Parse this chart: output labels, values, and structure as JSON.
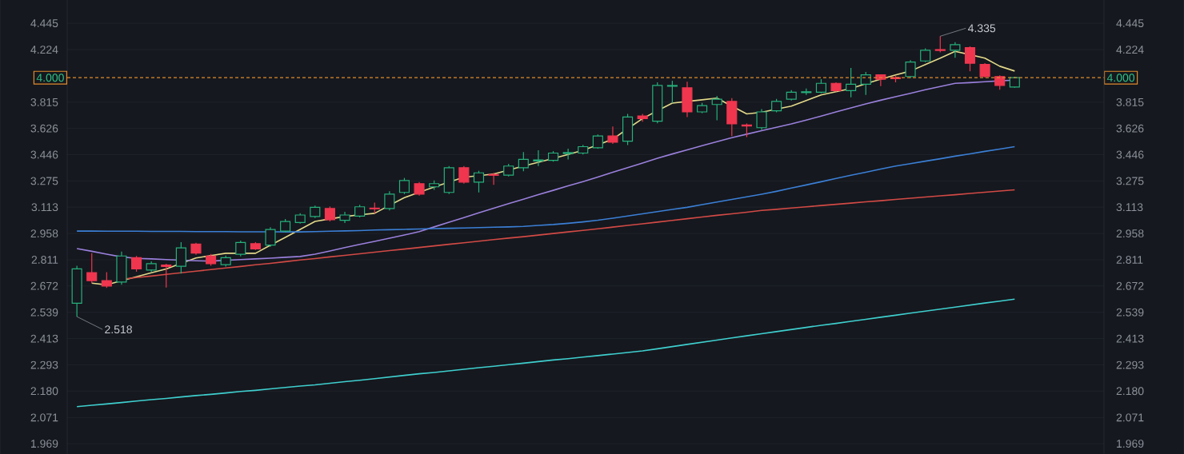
{
  "chart_data": {
    "type": "candlestick",
    "log": "y",
    "grid": "y",
    "tick_labels": "y",
    "categories": [
      null,
      null,
      null,
      null,
      null,
      null,
      null,
      null,
      null,
      null,
      null,
      null,
      null,
      null,
      null,
      null,
      null,
      null,
      null,
      null,
      null,
      null,
      null,
      null,
      null,
      null,
      null,
      null,
      null,
      null,
      null,
      null,
      null,
      null,
      null,
      null,
      null,
      null,
      null,
      null,
      null,
      null,
      null,
      null,
      null,
      null,
      null,
      null,
      null,
      null,
      null,
      null,
      null,
      null,
      null,
      null,
      null,
      null,
      null,
      null,
      null,
      null,
      null,
      null
    ],
    "ohlc": [
      [
        2.584,
        2.779,
        2.518,
        2.762
      ],
      [
        2.742,
        2.847,
        2.686,
        2.7
      ],
      [
        2.7,
        2.745,
        2.662,
        2.672
      ],
      [
        2.692,
        2.856,
        2.678,
        2.832
      ],
      [
        2.823,
        2.832,
        2.747,
        2.762
      ],
      [
        2.756,
        2.803,
        2.745,
        2.79
      ],
      [
        2.783,
        2.79,
        2.664,
        2.775
      ],
      [
        2.776,
        2.909,
        2.737,
        2.877
      ],
      [
        2.898,
        2.905,
        2.839,
        2.848
      ],
      [
        2.832,
        2.843,
        2.779,
        2.79
      ],
      [
        2.785,
        2.834,
        2.775,
        2.823
      ],
      [
        2.841,
        2.918,
        2.83,
        2.907
      ],
      [
        2.9,
        2.909,
        2.865,
        2.871
      ],
      [
        2.892,
        2.995,
        2.883,
        2.981
      ],
      [
        2.972,
        3.042,
        2.963,
        3.028
      ],
      [
        3.022,
        3.076,
        3.015,
        3.066
      ],
      [
        3.057,
        3.122,
        3.048,
        3.112
      ],
      [
        3.105,
        3.117,
        3.028,
        3.038
      ],
      [
        3.035,
        3.085,
        3.019,
        3.066
      ],
      [
        3.059,
        3.127,
        3.052,
        3.115
      ],
      [
        3.107,
        3.141,
        3.075,
        3.103
      ],
      [
        3.105,
        3.21,
        3.093,
        3.193
      ],
      [
        3.203,
        3.294,
        3.193,
        3.278
      ],
      [
        3.258,
        3.268,
        3.183,
        3.193
      ],
      [
        3.238,
        3.278,
        3.219,
        3.258
      ],
      [
        3.203,
        3.371,
        3.193,
        3.36
      ],
      [
        3.36,
        3.371,
        3.258,
        3.268
      ],
      [
        3.268,
        3.34,
        3.203,
        3.327
      ],
      [
        3.316,
        3.327,
        3.251,
        3.311
      ],
      [
        3.312,
        3.386,
        3.304,
        3.371
      ],
      [
        3.36,
        3.464,
        3.337,
        3.415
      ],
      [
        3.404,
        3.475,
        3.371,
        3.411
      ],
      [
        3.408,
        3.47,
        3.4,
        3.457
      ],
      [
        3.454,
        3.486,
        3.415,
        3.46
      ],
      [
        3.457,
        3.513,
        3.448,
        3.5
      ],
      [
        3.493,
        3.584,
        3.486,
        3.573
      ],
      [
        3.573,
        3.639,
        3.519,
        3.53
      ],
      [
        3.537,
        3.73,
        3.511,
        3.707
      ],
      [
        3.715,
        3.73,
        3.673,
        3.696
      ],
      [
        3.677,
        3.965,
        3.662,
        3.941
      ],
      [
        3.935,
        3.977,
        3.809,
        3.941
      ],
      [
        3.923,
        3.969,
        3.707,
        3.744
      ],
      [
        3.744,
        3.81,
        3.735,
        3.79
      ],
      [
        3.798,
        3.861,
        3.684,
        3.837
      ],
      [
        3.821,
        3.845,
        3.573,
        3.658
      ],
      [
        3.65,
        3.661,
        3.565,
        3.643
      ],
      [
        3.631,
        3.764,
        3.616,
        3.744
      ],
      [
        3.752,
        3.839,
        3.741,
        3.821
      ],
      [
        3.837,
        3.906,
        3.827,
        3.89
      ],
      [
        3.887,
        3.918,
        3.869,
        3.893
      ],
      [
        3.89,
        3.989,
        3.881,
        3.957
      ],
      [
        3.957,
        3.965,
        3.894,
        3.902
      ],
      [
        3.902,
        4.076,
        3.851,
        3.95
      ],
      [
        3.95,
        4.045,
        3.869,
        4.022
      ],
      [
        4.022,
        4.026,
        3.935,
        3.989
      ],
      [
        4.001,
        4.013,
        3.965,
        3.994
      ],
      [
        4.009,
        4.139,
        3.997,
        4.123
      ],
      [
        4.132,
        4.234,
        4.123,
        4.219
      ],
      [
        4.224,
        4.335,
        4.202,
        4.217
      ],
      [
        4.219,
        4.285,
        4.158,
        4.264
      ],
      [
        4.24,
        4.251,
        4.05,
        4.114
      ],
      [
        4.105,
        4.114,
        4.001,
        4.009
      ],
      [
        4.009,
        4.019,
        3.909,
        3.941
      ],
      [
        3.929,
        4.007,
        3.923,
        4.0
      ]
    ],
    "series": [
      {
        "type": "line",
        "color": "#e3d98a",
        "values": [
          null,
          2.687,
          2.678,
          2.699,
          2.72,
          2.741,
          2.762,
          2.792,
          2.821,
          2.834,
          2.847,
          2.847,
          2.847,
          2.892,
          2.936,
          2.982,
          3.028,
          3.043,
          3.057,
          3.067,
          3.076,
          3.124,
          3.171,
          3.204,
          3.237,
          3.268,
          3.299,
          3.309,
          3.319,
          3.345,
          3.371,
          3.396,
          3.421,
          3.448,
          3.475,
          3.513,
          3.551,
          3.624,
          3.696,
          3.753,
          3.809,
          3.821,
          3.833,
          3.845,
          3.786,
          3.73,
          3.741,
          3.764,
          3.786,
          3.828,
          3.869,
          3.894,
          3.918,
          3.954,
          3.989,
          4.021,
          4.052,
          4.104,
          4.155,
          4.21,
          4.183,
          4.155,
          4.09,
          4.052
        ]
      },
      {
        "type": "line",
        "color": "#9a80dd",
        "values": [
          2.873,
          2.858,
          2.842,
          2.827,
          2.819,
          2.816,
          2.812,
          2.809,
          2.806,
          2.804,
          2.808,
          2.812,
          2.816,
          2.82,
          2.825,
          2.829,
          2.842,
          2.86,
          2.878,
          2.896,
          2.913,
          2.931,
          2.949,
          2.969,
          2.996,
          3.024,
          3.051,
          3.079,
          3.106,
          3.134,
          3.161,
          3.189,
          3.216,
          3.244,
          3.271,
          3.3,
          3.331,
          3.361,
          3.391,
          3.422,
          3.451,
          3.479,
          3.507,
          3.534,
          3.562,
          3.586,
          3.61,
          3.634,
          3.658,
          3.685,
          3.714,
          3.744,
          3.773,
          3.803,
          3.83,
          3.856,
          3.882,
          3.908,
          3.933,
          3.957,
          3.963,
          3.97,
          3.976,
          3.982
        ]
      },
      {
        "type": "line",
        "color": "#3b7fd6",
        "values": [
          2.972,
          2.972,
          2.971,
          2.971,
          2.971,
          2.97,
          2.97,
          2.97,
          2.969,
          2.969,
          2.969,
          2.968,
          2.968,
          2.968,
          2.967,
          2.967,
          2.969,
          2.971,
          2.973,
          2.975,
          2.978,
          2.98,
          2.982,
          2.984,
          2.986,
          2.988,
          2.99,
          2.992,
          2.994,
          2.996,
          2.999,
          3.005,
          3.01,
          3.017,
          3.025,
          3.035,
          3.047,
          3.06,
          3.073,
          3.086,
          3.099,
          3.112,
          3.128,
          3.144,
          3.16,
          3.176,
          3.192,
          3.21,
          3.23,
          3.25,
          3.27,
          3.291,
          3.311,
          3.331,
          3.351,
          3.371,
          3.387,
          3.403,
          3.419,
          3.436,
          3.452,
          3.468,
          3.484,
          3.5
        ]
      },
      {
        "type": "line",
        "color": "#d24a46",
        "values": [
          null,
          null,
          null,
          2.707,
          2.716,
          2.724,
          2.733,
          2.741,
          2.75,
          2.758,
          2.767,
          2.775,
          2.784,
          2.792,
          2.801,
          2.81,
          2.818,
          2.827,
          2.835,
          2.844,
          2.853,
          2.862,
          2.87,
          2.879,
          2.888,
          2.897,
          2.905,
          2.914,
          2.923,
          2.932,
          2.94,
          2.949,
          2.958,
          2.967,
          2.976,
          2.985,
          2.995,
          3.005,
          3.014,
          3.024,
          3.034,
          3.044,
          3.054,
          3.064,
          3.073,
          3.083,
          3.093,
          3.1,
          3.108,
          3.115,
          3.123,
          3.13,
          3.137,
          3.145,
          3.152,
          3.16,
          3.167,
          3.175,
          3.182,
          3.189,
          3.197,
          3.204,
          3.212,
          3.219
        ]
      },
      {
        "type": "line",
        "color": "#3fcfcf",
        "values": [
          2.115,
          2.121,
          2.126,
          2.132,
          2.138,
          2.144,
          2.149,
          2.155,
          2.161,
          2.166,
          2.172,
          2.178,
          2.183,
          2.189,
          2.195,
          2.201,
          2.206,
          2.213,
          2.22,
          2.226,
          2.233,
          2.24,
          2.247,
          2.254,
          2.26,
          2.267,
          2.274,
          2.281,
          2.287,
          2.294,
          2.301,
          2.308,
          2.315,
          2.321,
          2.328,
          2.335,
          2.342,
          2.349,
          2.356,
          2.366,
          2.376,
          2.386,
          2.396,
          2.406,
          2.416,
          2.426,
          2.436,
          2.446,
          2.456,
          2.466,
          2.476,
          2.485,
          2.495,
          2.505,
          2.515,
          2.525,
          2.535,
          2.545,
          2.555,
          2.565,
          2.575,
          2.585,
          2.595,
          2.605
        ]
      }
    ],
    "ylim": [
      1.93,
      4.65
    ],
    "yticks": [
      {
        "value": 4.445,
        "label": "4.445"
      },
      {
        "value": 4.224,
        "label": "4.224"
      },
      {
        "value": 3.815,
        "label": "3.815"
      },
      {
        "value": 3.626,
        "label": "3.626"
      },
      {
        "value": 3.446,
        "label": "3.446"
      },
      {
        "value": 3.275,
        "label": "3.275"
      },
      {
        "value": 3.113,
        "label": "3.113"
      },
      {
        "value": 2.958,
        "label": "2.958"
      },
      {
        "value": 2.811,
        "label": "2.811"
      },
      {
        "value": 2.672,
        "label": "2.672"
      },
      {
        "value": 2.539,
        "label": "2.539"
      },
      {
        "value": 2.413,
        "label": "2.413"
      },
      {
        "value": 2.293,
        "label": "2.293"
      },
      {
        "value": 2.18,
        "label": "2.180"
      },
      {
        "value": 2.071,
        "label": "2.071"
      },
      {
        "value": 1.969,
        "label": "1.969"
      }
    ],
    "ref_lines": [
      {
        "axis": "y",
        "value": 4.0,
        "label": "4.000",
        "color": "#e08a2c",
        "line_style": "dashed"
      }
    ],
    "annotations": [
      "4.335",
      "2.518"
    ]
  }
}
